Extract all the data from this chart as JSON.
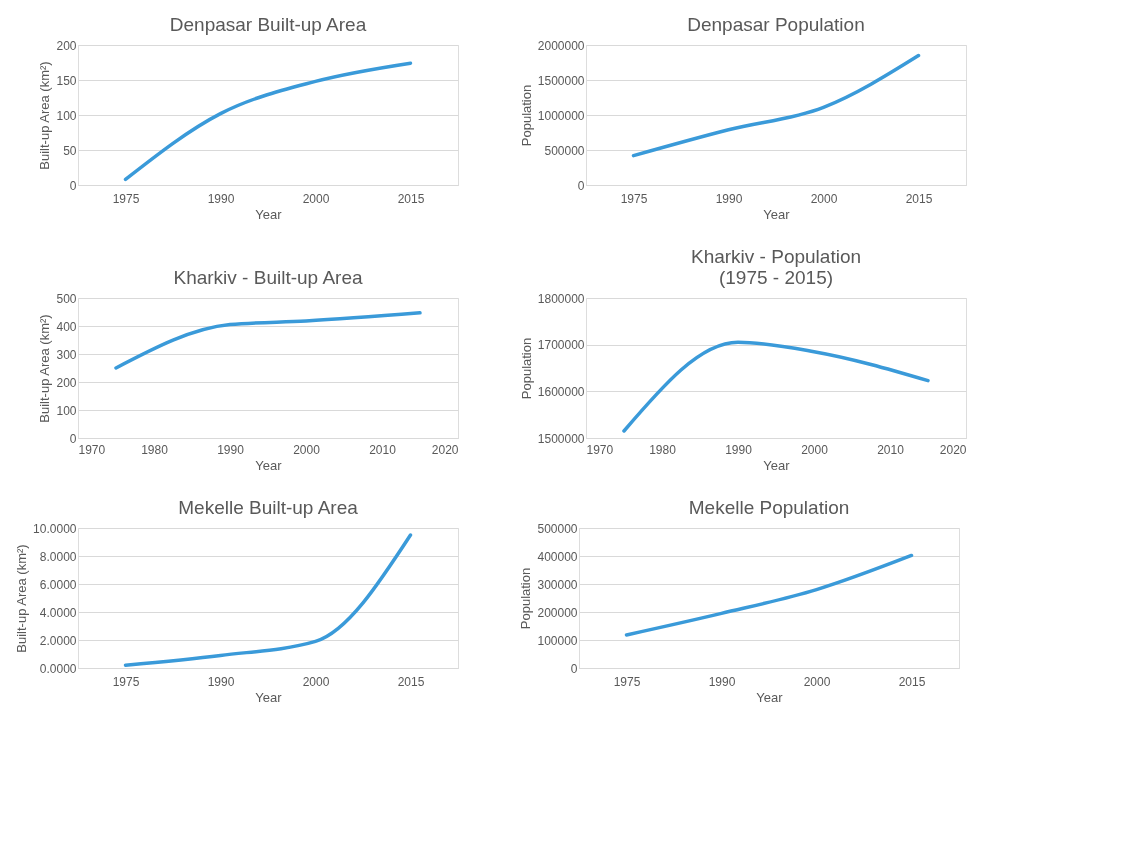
{
  "chart_data": [
    {
      "type": "line",
      "title": "Denpasar Built-up Area",
      "xlabel": "Year",
      "ylabel": "Built-up Area (km²)",
      "categories": [
        "1975",
        "1990",
        "2000",
        "2015"
      ],
      "series": [
        {
          "color": "#3a9ad9",
          "values": [
            8,
            102,
            148,
            174
          ]
        }
      ],
      "ylim": [
        0,
        200
      ],
      "yticks": [
        0,
        50,
        100,
        150,
        200
      ],
      "grid": "y"
    },
    {
      "type": "line",
      "title": "Denpasar Population",
      "xlabel": "Year",
      "ylabel": "Population",
      "categories": [
        "1975",
        "1990",
        "2000",
        "2015"
      ],
      "series": [
        {
          "color": "#3a9ad9",
          "values": [
            420000,
            790000,
            1110000,
            1850000
          ]
        }
      ],
      "ylim": [
        0,
        2000000
      ],
      "yticks": [
        0,
        500000,
        1000000,
        1500000,
        2000000
      ],
      "grid": "y"
    },
    {
      "type": "line",
      "title": "Kharkiv - Built-up Area",
      "xlabel": "Year",
      "ylabel": "Built-up Area  (km²)",
      "x": [
        1975,
        1990,
        2000,
        2015
      ],
      "series": [
        {
          "color": "#3a9ad9",
          "values": [
            250,
            405,
            418,
            447
          ]
        }
      ],
      "xlim": [
        1970,
        2020
      ],
      "xticks": [
        1970,
        1980,
        1990,
        2000,
        2010,
        2020
      ],
      "ylim": [
        0,
        500
      ],
      "yticks": [
        0,
        100,
        200,
        300,
        400,
        500
      ],
      "grid": "y"
    },
    {
      "type": "line",
      "title": [
        "Kharkiv - Population",
        "(1975 - 2015)"
      ],
      "xlabel": "Year",
      "ylabel": "Population",
      "x": [
        1975,
        1990,
        2000,
        2015
      ],
      "series": [
        {
          "color": "#3a9ad9",
          "values": [
            1515000,
            1705000,
            1685000,
            1623000
          ]
        }
      ],
      "xlim": [
        1970,
        2020
      ],
      "xticks": [
        1970,
        1980,
        1990,
        2000,
        2010,
        2020
      ],
      "ylim": [
        1500000,
        1800000
      ],
      "yticks": [
        1500000,
        1600000,
        1700000,
        1800000
      ],
      "grid": "y"
    },
    {
      "type": "line",
      "title": "Mekelle Built-up Area",
      "xlabel": "Year",
      "ylabel": "Built-up Area (km²)",
      "categories": [
        "1975",
        "1990",
        "2000",
        "2015"
      ],
      "series": [
        {
          "color": "#3a9ad9",
          "values": [
            0.2,
            0.9,
            1.9,
            9.5
          ]
        }
      ],
      "ylim": [
        0,
        10
      ],
      "yticks": [
        {
          "value": 0,
          "label": "0.0000"
        },
        {
          "value": 2,
          "label": "2.0000"
        },
        {
          "value": 4,
          "label": "4.0000"
        },
        {
          "value": 6,
          "label": "6.0000"
        },
        {
          "value": 8,
          "label": "8.0000"
        },
        {
          "value": 10,
          "label": "10.0000"
        }
      ],
      "grid": "y"
    },
    {
      "type": "line",
      "title": "Mekelle Population",
      "xlabel": "Year",
      "ylabel": "Population",
      "categories": [
        "1975",
        "1990",
        "2000",
        "2015"
      ],
      "series": [
        {
          "color": "#3a9ad9",
          "values": [
            118000,
            195000,
            280000,
            402000
          ]
        }
      ],
      "ylim": [
        0,
        500000
      ],
      "yticks": [
        0,
        100000,
        200000,
        300000,
        400000,
        500000
      ],
      "grid": "y"
    }
  ]
}
